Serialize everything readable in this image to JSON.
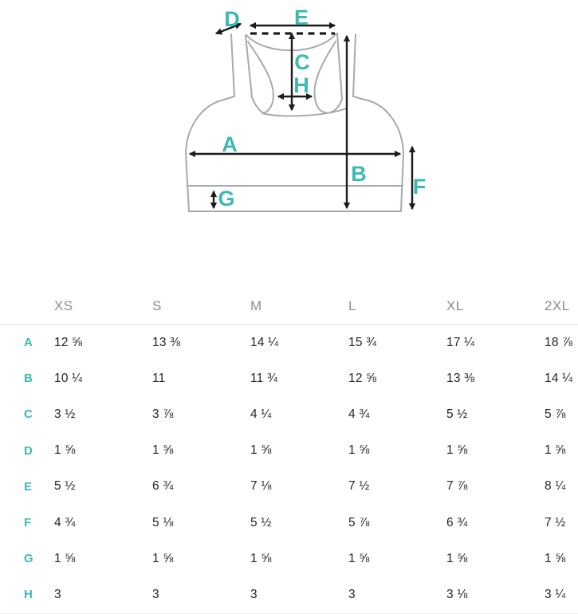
{
  "diagram": {
    "type": "sports-bra measurement diagram",
    "labels": {
      "A": "A",
      "B": "B",
      "C": "C",
      "D": "D",
      "E": "E",
      "F": "F",
      "G": "G",
      "H": "H"
    }
  },
  "table": {
    "columns": [
      "XS",
      "S",
      "M",
      "L",
      "XL",
      "2XL"
    ],
    "rows": [
      {
        "label": "A",
        "values": [
          "12 ⅝",
          "13 ⅜",
          "14 ¼",
          "15 ¾",
          "17 ¼",
          "18 ⅞"
        ]
      },
      {
        "label": "B",
        "values": [
          "10 ¼",
          "11",
          "11 ¾",
          "12 ⅝",
          "13 ⅜",
          "14 ¼"
        ]
      },
      {
        "label": "C",
        "values": [
          "3 ½",
          "3 ⅞",
          "4 ¼",
          "4 ¾",
          "5 ½",
          "5 ⅞"
        ]
      },
      {
        "label": "D",
        "values": [
          "1 ⅝",
          "1 ⅝",
          "1 ⅝",
          "1 ⅝",
          "1 ⅝",
          "1 ⅝"
        ]
      },
      {
        "label": "E",
        "values": [
          "5 ½",
          "6 ¾",
          "7 ⅛",
          "7 ½",
          "7 ⅞",
          "8 ¼"
        ]
      },
      {
        "label": "F",
        "values": [
          "4 ¾",
          "5 ⅛",
          "5 ½",
          "5 ⅞",
          "6 ¾",
          "7 ½"
        ]
      },
      {
        "label": "G",
        "values": [
          "1 ⅝",
          "1 ⅝",
          "1 ⅝",
          "1 ⅝",
          "1 ⅝",
          "1 ⅝"
        ]
      },
      {
        "label": "H",
        "values": [
          "3",
          "3",
          "3",
          "3",
          "3 ⅛",
          "3 ¼"
        ]
      }
    ]
  },
  "colors": {
    "accent_teal": "#3db9b3",
    "garment_outline": "#a6aaad",
    "arrow_black": "#1c1c1c",
    "header_text": "#8d8d8d",
    "value_text": "#262626",
    "divider": "#dcdcdc"
  }
}
